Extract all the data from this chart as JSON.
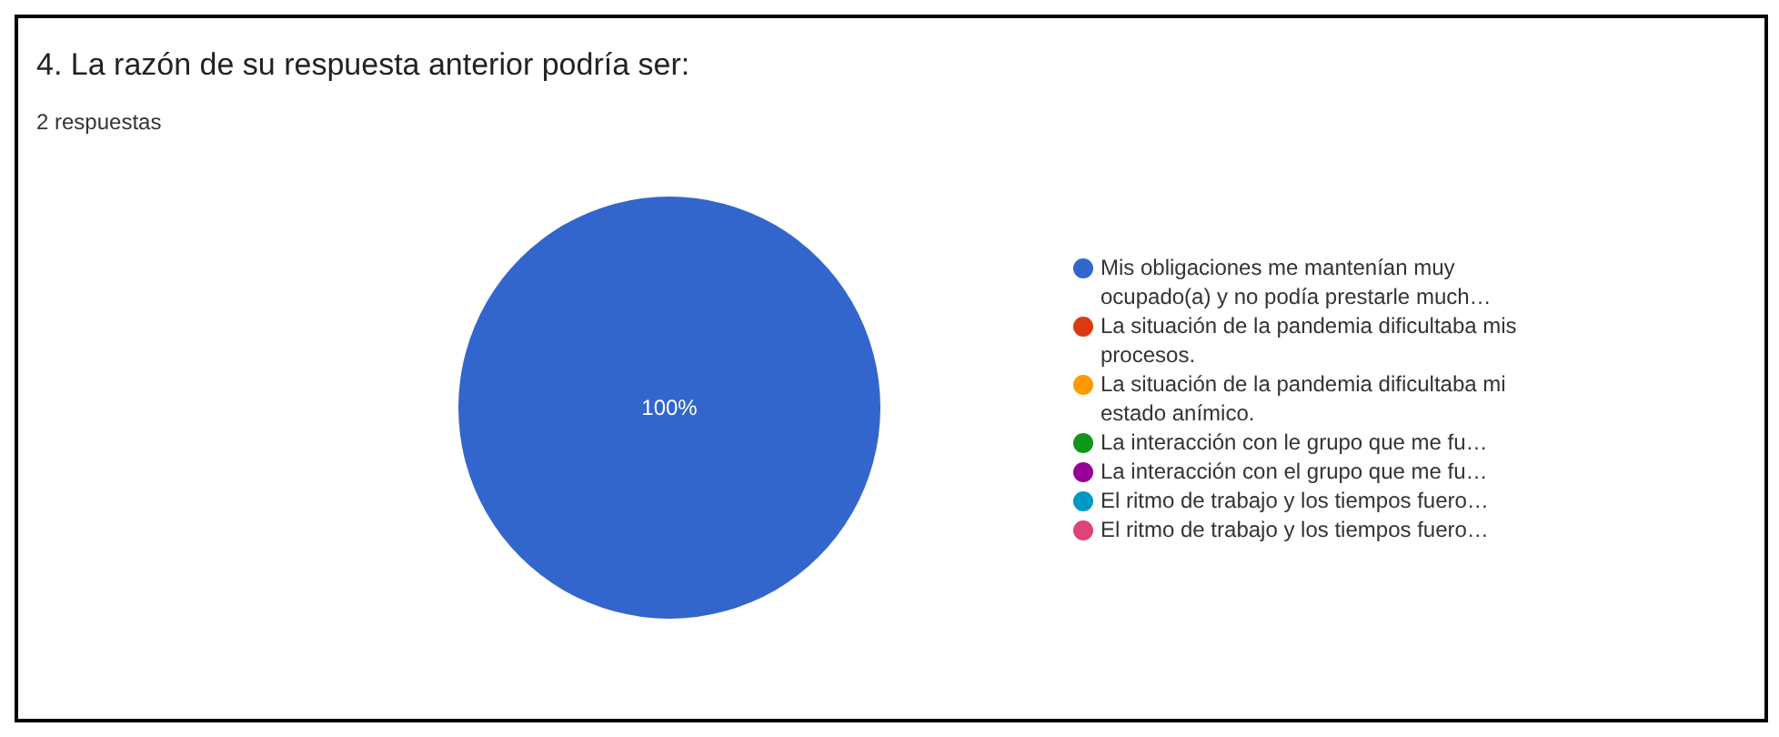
{
  "chart_data": {
    "type": "pie",
    "title": "4. La razón de su respuesta anterior podría ser:",
    "subtitle": "2 respuestas",
    "categories": [
      "Mis obligaciones me mantenían muy ocupado(a) y no podía prestarle much…",
      "La situación de la pandemia dificultaba mis procesos.",
      "La situación de la pandemia dificultaba mi estado anímico.",
      "La interacción con le grupo que me fu…",
      "La interacción con el grupo que me fu…",
      "El ritmo de trabajo y los tiempos fuero…",
      "El ritmo de trabajo y los tiempos fuero…"
    ],
    "values": [
      100,
      0,
      0,
      0,
      0,
      0,
      0
    ],
    "colors": [
      "#3366cc",
      "#dc3912",
      "#ff9900",
      "#109618",
      "#990099",
      "#0099c6",
      "#dd4477"
    ],
    "value_labels": [
      "100%",
      null,
      null,
      null,
      null,
      null,
      null
    ],
    "legend": "right"
  }
}
